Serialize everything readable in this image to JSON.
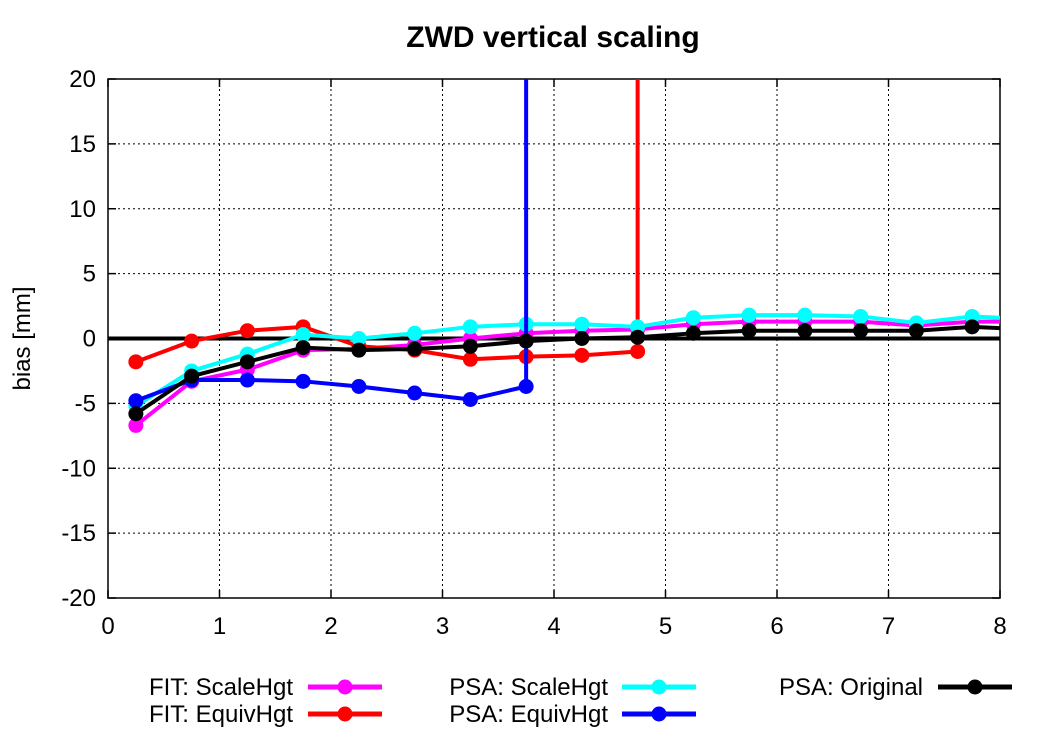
{
  "chart_data": {
    "type": "line",
    "title": "ZWD vertical scaling",
    "xlabel": "",
    "ylabel": "bias [mm]",
    "xlim": [
      0,
      8
    ],
    "ylim": [
      -20,
      20
    ],
    "xticks": [
      0,
      1,
      2,
      3,
      4,
      5,
      6,
      7,
      8
    ],
    "yticks": [
      -20,
      -15,
      -10,
      -5,
      0,
      5,
      10,
      15,
      20
    ],
    "grid": true,
    "legend_position": "bottom",
    "reference_line": 0,
    "series": [
      {
        "name": "FIT: ScaleHgt",
        "color": "#ff00ff",
        "x": [
          0.25,
          0.75,
          1.25,
          1.75,
          2.25,
          2.75,
          3.25,
          3.75,
          4.25,
          4.75,
          5.25,
          5.75,
          6.25,
          6.75,
          7.25,
          7.75,
          8.0
        ],
        "y": [
          -6.7,
          -3.3,
          -2.4,
          -0.9,
          -0.8,
          -0.5,
          0.0,
          0.4,
          0.6,
          0.7,
          1.1,
          1.3,
          1.3,
          1.3,
          1.0,
          1.3,
          1.3
        ]
      },
      {
        "name": "FIT: EquivHgt",
        "color": "#ff0000",
        "x": [
          0.25,
          0.75,
          1.25,
          1.75,
          2.25,
          2.75,
          3.25,
          3.75,
          4.25,
          4.75
        ],
        "y": [
          -1.8,
          -0.2,
          0.6,
          0.9,
          -0.6,
          -0.9,
          -1.6,
          -1.4,
          -1.3,
          -1.0
        ],
        "spike_x": 4.75
      },
      {
        "name": "PSA: ScaleHgt",
        "color": "#00ffff",
        "x": [
          0.25,
          0.75,
          1.25,
          1.75,
          2.25,
          2.75,
          3.25,
          3.75,
          4.25,
          4.75,
          5.25,
          5.75,
          6.25,
          6.75,
          7.25,
          7.75,
          8.0
        ],
        "y": [
          -5.2,
          -2.5,
          -1.2,
          0.3,
          0.0,
          0.4,
          0.9,
          1.1,
          1.1,
          0.9,
          1.6,
          1.8,
          1.8,
          1.7,
          1.2,
          1.7,
          1.6
        ]
      },
      {
        "name": "PSA: EquivHgt",
        "color": "#0000ff",
        "x": [
          0.25,
          0.75,
          1.25,
          1.75,
          2.25,
          2.75,
          3.25,
          3.75
        ],
        "y": [
          -4.8,
          -3.2,
          -3.2,
          -3.3,
          -3.7,
          -4.2,
          -4.7,
          -3.7
        ],
        "spike_x": 3.75
      },
      {
        "name": "PSA: Original",
        "color": "#000000",
        "x": [
          0.25,
          0.75,
          1.25,
          1.75,
          2.25,
          2.75,
          3.25,
          3.75,
          4.25,
          4.75,
          5.25,
          5.75,
          6.25,
          6.75,
          7.25,
          7.75,
          8.0
        ],
        "y": [
          -5.8,
          -2.9,
          -1.8,
          -0.7,
          -0.9,
          -0.8,
          -0.6,
          -0.2,
          0.0,
          0.1,
          0.4,
          0.6,
          0.6,
          0.6,
          0.6,
          0.9,
          0.8
        ]
      }
    ]
  }
}
